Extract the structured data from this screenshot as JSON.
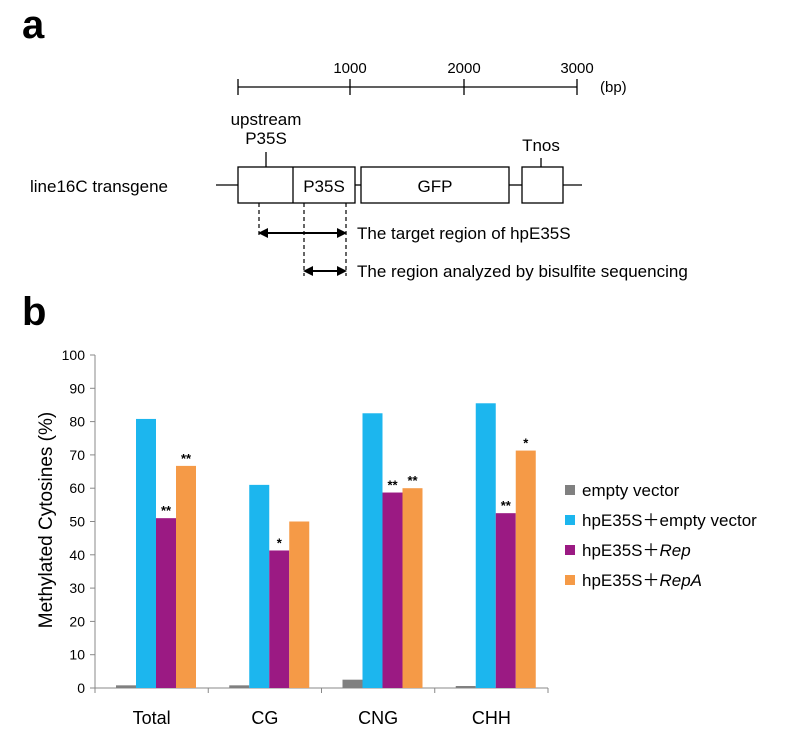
{
  "panel_a": {
    "letter": "a",
    "scale": {
      "ticks": [
        "1000",
        "2000",
        "3000"
      ],
      "unit": "(bp)"
    },
    "line_label": "line16C  transgene",
    "boxes": {
      "upstream": "",
      "p35s": "P35S",
      "gfp": "GFP",
      "tnos": ""
    },
    "labels": {
      "upstream_line1": "upstream",
      "upstream_line2": "P35S",
      "tnos": "Tnos"
    },
    "arrows": {
      "target": "The target region of hpE35S",
      "bisulfite": "The region analyzed by bisulfite sequencing"
    }
  },
  "panel_b": {
    "letter": "b"
  },
  "legend": {
    "items": [
      {
        "text": "empty vector",
        "color": "#808080"
      },
      {
        "prefix": "hpE35S＋",
        "suffix": "empty vector",
        "italic": false,
        "color": "#1cb6ee"
      },
      {
        "prefix": "hpE35S＋",
        "suffix": "Rep",
        "italic": true,
        "color": "#9b1a83"
      },
      {
        "prefix": "hpE35S＋",
        "suffix": "RepA",
        "italic": true,
        "color": "#f59a47"
      }
    ]
  },
  "chart_data": {
    "type": "bar",
    "ylabel": "Methylated Cytosines (%)",
    "ylim": [
      0,
      100
    ],
    "yticks": [
      0,
      10,
      20,
      30,
      40,
      50,
      60,
      70,
      80,
      90,
      100
    ],
    "grid": false,
    "legend_position": "right",
    "categories": [
      "Total",
      "CG",
      "CNG",
      "CHH"
    ],
    "series": [
      {
        "name": "empty vector",
        "color": "#808080",
        "values": [
          0.8,
          0.8,
          2.5,
          0.6
        ],
        "labels": [
          "",
          "",
          "",
          ""
        ]
      },
      {
        "name": "hpE35S＋empty vector",
        "color": "#1cb6ee",
        "values": [
          80.8,
          61.0,
          82.5,
          85.5
        ],
        "labels": [
          "",
          "",
          "",
          ""
        ]
      },
      {
        "name": "hpE35S＋Rep",
        "color": "#9b1a83",
        "values": [
          51.0,
          41.3,
          58.7,
          52.5
        ],
        "labels": [
          "**",
          "*",
          "**",
          "**"
        ]
      },
      {
        "name": "hpE35S＋RepA",
        "color": "#f59a47",
        "values": [
          66.7,
          50.0,
          60.0,
          71.3
        ],
        "labels": [
          "**",
          "",
          "**",
          "*"
        ]
      }
    ]
  }
}
